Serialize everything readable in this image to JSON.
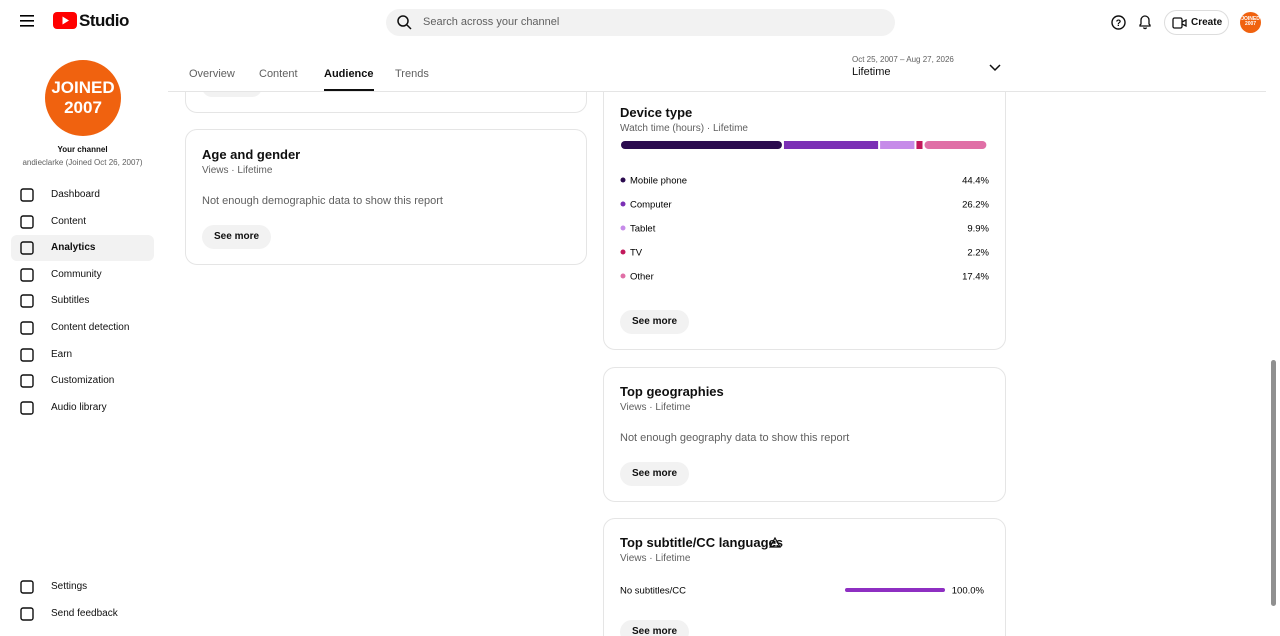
{
  "header": {
    "logo": "Studio",
    "search_placeholder": "Search across your channel",
    "create": "Create",
    "avatar_text": "JOINED 2007"
  },
  "sidebar": {
    "avatar": {
      "line1": "JOINED",
      "line2": "2007"
    },
    "channel_label": "Your channel",
    "channel_name": "andieclarke (Joined Oct 26, 2007)",
    "nav": [
      "Dashboard",
      "Content",
      "Analytics",
      "Community",
      "Subtitles",
      "Content detection",
      "Earn",
      "Customization",
      "Audio library"
    ],
    "active": "Analytics",
    "bottom": [
      "Settings",
      "Send feedback"
    ]
  },
  "tabs": {
    "items": [
      "Overview",
      "Content",
      "Audience",
      "Trends"
    ],
    "active": "Audience"
  },
  "date_range": {
    "range": "Oct 25, 2007 – Aug 27, 2026",
    "label": "Lifetime"
  },
  "age_gender": {
    "title": "Age and gender",
    "subtitle": "Views · Lifetime",
    "message": "Not enough demographic data to show this report",
    "button": "See more"
  },
  "device_type": {
    "title": "Device type",
    "subtitle": "Watch time (hours) · Lifetime",
    "rows": [
      {
        "name": "Mobile phone",
        "color": "#2b0b4f",
        "value": 44.4,
        "label": "44.4%"
      },
      {
        "name": "Computer",
        "color": "#7b2fb5",
        "value": 26.2,
        "label": "26.2%"
      },
      {
        "name": "Tablet",
        "color": "#c68be9",
        "value": 9.9,
        "label": "9.9%"
      },
      {
        "name": "TV",
        "color": "#c2185b",
        "value": 2.2,
        "label": "2.2%"
      },
      {
        "name": "Other",
        "color": "#e06fa6",
        "value": 17.4,
        "label": "17.4%"
      }
    ],
    "button": "See more"
  },
  "geographies": {
    "title": "Top geographies",
    "subtitle": "Views · Lifetime",
    "message": "Not enough geography data to show this report",
    "button": "See more"
  },
  "subtitles": {
    "title": "Top subtitle/CC languages",
    "subtitle": "Views · Lifetime",
    "rows": [
      {
        "name": "No subtitles/CC",
        "color": "#8e2fc2",
        "value": 100,
        "label": "100.0%"
      }
    ],
    "button": "See more"
  }
}
